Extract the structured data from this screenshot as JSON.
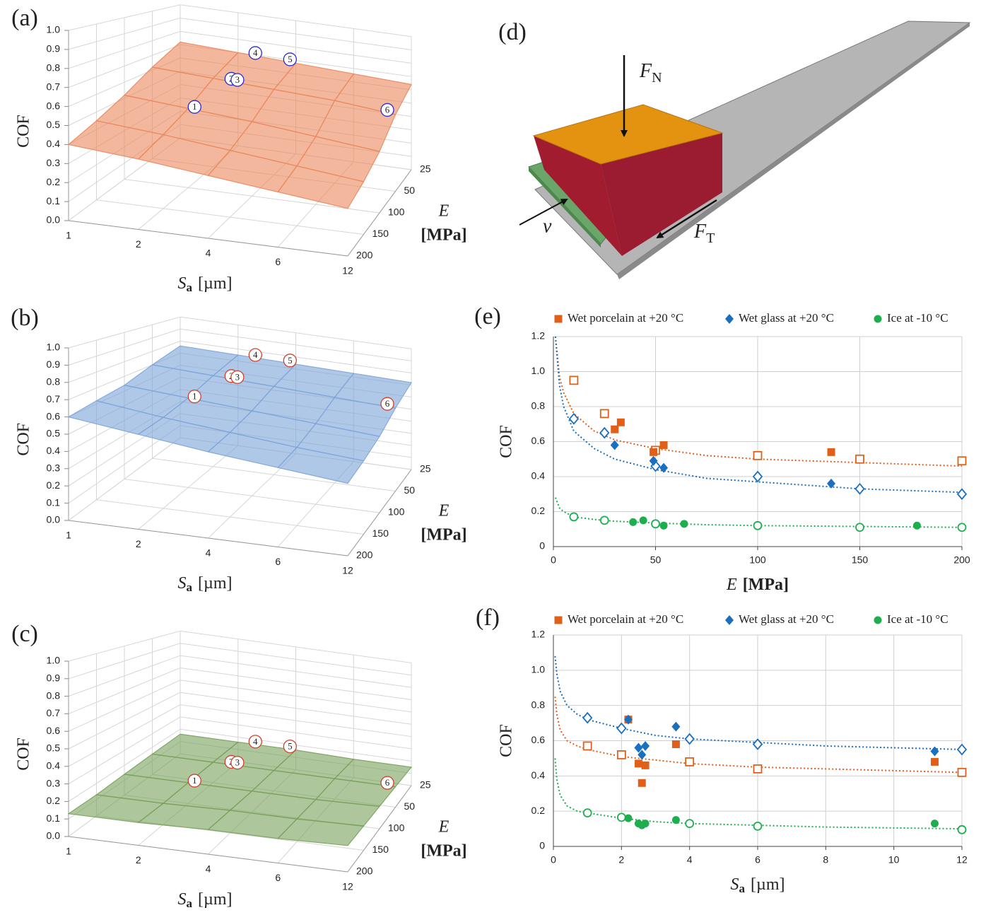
{
  "chart_data": [
    {
      "type": "surface3d",
      "panel_label": "(a)",
      "zlabel": "COF",
      "xlabel": [
        "S",
        "a",
        "[µm]"
      ],
      "ylabel": [
        "E",
        "[MPa]"
      ],
      "x_categories": [
        1,
        2,
        4,
        6,
        12
      ],
      "y_categories": [
        25,
        50,
        100,
        150,
        200
      ],
      "zlim": [
        0,
        1
      ],
      "zticks": [
        {
          "value": 0,
          "label": "0.0"
        },
        0.1,
        0.2,
        0.3,
        0.4,
        0.5,
        0.6,
        0.7,
        0.8,
        0.9,
        {
          "value": 1,
          "label": "1.0"
        }
      ],
      "grid": true,
      "z": [
        [
          0.72,
          0.7,
          0.68,
          0.66,
          0.64
        ],
        [
          0.62,
          0.6,
          0.58,
          0.56,
          0.52
        ],
        [
          0.52,
          0.49,
          0.46,
          0.42,
          0.38
        ],
        [
          0.45,
          0.42,
          0.38,
          0.34,
          0.3
        ],
        [
          0.4,
          0.37,
          0.33,
          0.29,
          0.25
        ]
      ],
      "color": "#f08a5d",
      "annotation_color": "#2a2ad0",
      "annotations": [
        {
          "label": "1",
          "x": 2.2,
          "y": 100
        },
        {
          "label": "2",
          "x": 2.6,
          "y": 50
        },
        {
          "label": "3",
          "x": 2.8,
          "y": 50
        },
        {
          "label": "4",
          "x": 2.6,
          "y": 25
        },
        {
          "label": "5",
          "x": 3.8,
          "y": 25
        },
        {
          "label": "6",
          "x": 11.2,
          "y": 50
        }
      ]
    },
    {
      "type": "surface3d",
      "panel_label": "(b)",
      "zlabel": "COF",
      "xlabel": [
        "S",
        "a",
        "[µm]"
      ],
      "ylabel": [
        "E",
        "[MPa]"
      ],
      "x_categories": [
        1,
        2,
        4,
        6,
        12
      ],
      "y_categories": [
        25,
        50,
        100,
        150,
        200
      ],
      "zlim": [
        0,
        1
      ],
      "zticks": [
        {
          "value": 0,
          "label": "0.0"
        },
        0.1,
        0.2,
        0.3,
        0.4,
        0.5,
        0.6,
        0.7,
        0.8,
        0.9,
        {
          "value": 1,
          "label": "1.0"
        }
      ],
      "grid": true,
      "z": [
        [
          0.76,
          0.75,
          0.74,
          0.73,
          0.72
        ],
        [
          0.7,
          0.68,
          0.66,
          0.64,
          0.62
        ],
        [
          0.64,
          0.61,
          0.58,
          0.55,
          0.52
        ],
        [
          0.62,
          0.57,
          0.53,
          0.49,
          0.46
        ],
        [
          0.6,
          0.55,
          0.5,
          0.46,
          0.42
        ]
      ],
      "color": "#7fa7dc",
      "annotation_color": "#d0402a",
      "annotations": [
        {
          "label": "1",
          "x": 2.2,
          "y": 100
        },
        {
          "label": "2",
          "x": 2.6,
          "y": 50
        },
        {
          "label": "3",
          "x": 2.8,
          "y": 50
        },
        {
          "label": "4",
          "x": 2.6,
          "y": 25
        },
        {
          "label": "5",
          "x": 3.8,
          "y": 25
        },
        {
          "label": "6",
          "x": 11.2,
          "y": 50
        }
      ]
    },
    {
      "type": "surface3d",
      "panel_label": "(c)",
      "zlabel": "COF",
      "xlabel": [
        "S",
        "a",
        "[µm]"
      ],
      "ylabel": [
        "E",
        "[MPa]"
      ],
      "x_categories": [
        1,
        2,
        4,
        6,
        12
      ],
      "y_categories": [
        25,
        50,
        100,
        150,
        200
      ],
      "zlim": [
        0,
        1
      ],
      "zticks": [
        {
          "value": 0,
          "label": "0.0"
        },
        0.1,
        0.2,
        0.3,
        0.4,
        0.5,
        0.6,
        0.7,
        0.8,
        0.9,
        {
          "value": 1,
          "label": "1.0"
        }
      ],
      "grid": true,
      "z": [
        [
          0.16,
          0.16,
          0.16,
          0.15,
          0.15
        ],
        [
          0.15,
          0.15,
          0.15,
          0.15,
          0.15
        ],
        [
          0.14,
          0.14,
          0.14,
          0.14,
          0.15
        ],
        [
          0.13,
          0.13,
          0.14,
          0.14,
          0.15
        ],
        [
          0.13,
          0.13,
          0.14,
          0.14,
          0.15
        ]
      ],
      "color": "#7aa35c",
      "annotation_color": "#d0402a",
      "annotations": [
        {
          "label": "1",
          "x": 2.2,
          "y": 100
        },
        {
          "label": "2",
          "x": 2.6,
          "y": 50
        },
        {
          "label": "3",
          "x": 2.8,
          "y": 50
        },
        {
          "label": "4",
          "x": 2.6,
          "y": 25
        },
        {
          "label": "5",
          "x": 3.8,
          "y": 25
        },
        {
          "label": "6",
          "x": 11.2,
          "y": 50
        }
      ]
    },
    {
      "type": "scatter",
      "panel_label": "(e)",
      "ylabel": "COF",
      "xlabel": [
        "E",
        "[MPa]"
      ],
      "xlim": [
        0,
        200
      ],
      "xticks": [
        0,
        50,
        100,
        150,
        200
      ],
      "ylim": [
        0,
        1.2
      ],
      "yticks": [
        0,
        0.2,
        0.4,
        0.6,
        0.8,
        {
          "value": 1,
          "label": "1.0"
        },
        1.2
      ],
      "grid": true,
      "series": [
        {
          "name": "Wet porcelain at +20 °C",
          "color": "#e0601a",
          "marker": "square",
          "x": [
            30,
            33,
            49,
            54,
            136
          ],
          "values": [
            0.67,
            0.71,
            0.54,
            0.58,
            0.54
          ],
          "open_x": [
            10,
            25,
            50,
            100,
            150,
            200
          ],
          "open_values": [
            0.95,
            0.76,
            0.55,
            0.52,
            0.5,
            0.49
          ],
          "trend_x": [
            1,
            3,
            5,
            10,
            20,
            30,
            50,
            75,
            100,
            150,
            200
          ],
          "trend_values": [
            1.2,
            0.97,
            0.88,
            0.76,
            0.66,
            0.61,
            0.56,
            0.52,
            0.5,
            0.48,
            0.46
          ]
        },
        {
          "name": "Wet glass at +20 °C",
          "color": "#1a6fc0",
          "marker": "diamond",
          "x": [
            30,
            49,
            54,
            136
          ],
          "values": [
            0.58,
            0.49,
            0.45,
            0.36
          ],
          "open_x": [
            10,
            25,
            50,
            100,
            150,
            200
          ],
          "open_values": [
            0.73,
            0.65,
            0.46,
            0.4,
            0.33,
            0.3
          ],
          "trend_x": [
            1,
            3,
            5,
            10,
            20,
            30,
            50,
            75,
            100,
            150,
            200
          ],
          "trend_values": [
            1.2,
            0.92,
            0.8,
            0.66,
            0.56,
            0.5,
            0.44,
            0.39,
            0.37,
            0.33,
            0.31
          ]
        },
        {
          "name": "Ice at -10 °C",
          "color": "#1fae4f",
          "marker": "circle",
          "x": [
            39,
            44,
            54,
            64,
            178
          ],
          "values": [
            0.14,
            0.15,
            0.12,
            0.13,
            0.12
          ],
          "open_x": [
            10,
            25,
            50,
            100,
            150,
            200
          ],
          "open_values": [
            0.17,
            0.15,
            0.13,
            0.12,
            0.11,
            0.11
          ],
          "trend_x": [
            1,
            3,
            5,
            10,
            20,
            30,
            50,
            75,
            100,
            150,
            200
          ],
          "trend_values": [
            0.28,
            0.22,
            0.2,
            0.17,
            0.155,
            0.145,
            0.135,
            0.125,
            0.12,
            0.115,
            0.11
          ]
        }
      ]
    },
    {
      "type": "scatter",
      "panel_label": "(f)",
      "ylabel": "COF",
      "xlabel": [
        "S",
        "a",
        "[µm]"
      ],
      "xlim": [
        0,
        12
      ],
      "xticks": [
        0,
        2,
        4,
        6,
        8,
        10,
        12
      ],
      "ylim": [
        0,
        1.2
      ],
      "yticks": [
        0,
        0.2,
        0.4,
        0.6,
        0.8,
        {
          "value": 1,
          "label": "1.0"
        },
        1.2
      ],
      "grid": true,
      "series": [
        {
          "name": "Wet porcelain at +20 °C",
          "color": "#e0601a",
          "marker": "square",
          "x": [
            2.2,
            2.5,
            2.6,
            2.7,
            3.6,
            11.2
          ],
          "values": [
            0.72,
            0.47,
            0.36,
            0.46,
            0.58,
            0.48
          ],
          "open_x": [
            1,
            2,
            4,
            6,
            12
          ],
          "open_values": [
            0.57,
            0.52,
            0.48,
            0.44,
            0.42
          ],
          "trend_x": [
            0.05,
            0.1,
            0.2,
            0.4,
            0.7,
            1,
            2,
            3,
            4,
            6,
            8,
            12
          ],
          "trend_values": [
            0.85,
            0.75,
            0.66,
            0.6,
            0.57,
            0.55,
            0.51,
            0.49,
            0.47,
            0.45,
            0.44,
            0.42
          ]
        },
        {
          "name": "Wet glass at +20 °C",
          "color": "#1a6fc0",
          "marker": "diamond",
          "x": [
            2.2,
            2.5,
            2.6,
            2.7,
            3.6,
            11.2
          ],
          "values": [
            0.72,
            0.56,
            0.52,
            0.57,
            0.68,
            0.54
          ],
          "open_x": [
            1,
            2,
            4,
            6,
            12
          ],
          "open_values": [
            0.73,
            0.67,
            0.61,
            0.58,
            0.55
          ],
          "trend_x": [
            0.05,
            0.1,
            0.2,
            0.4,
            0.7,
            1,
            2,
            3,
            4,
            6,
            8,
            12
          ],
          "trend_values": [
            1.08,
            0.98,
            0.88,
            0.8,
            0.75,
            0.72,
            0.67,
            0.63,
            0.61,
            0.59,
            0.57,
            0.55
          ]
        },
        {
          "name": "Ice at -10 °C",
          "color": "#1fae4f",
          "marker": "circle",
          "x": [
            2.2,
            2.5,
            2.6,
            2.7,
            3.6,
            11.2
          ],
          "values": [
            0.16,
            0.13,
            0.12,
            0.13,
            0.15,
            0.13
          ],
          "open_x": [
            1,
            2,
            4,
            6,
            12
          ],
          "open_values": [
            0.19,
            0.165,
            0.13,
            0.115,
            0.095
          ],
          "trend_x": [
            0.05,
            0.1,
            0.2,
            0.4,
            0.7,
            1,
            2,
            3,
            4,
            6,
            8,
            12
          ],
          "trend_values": [
            0.5,
            0.38,
            0.29,
            0.23,
            0.2,
            0.19,
            0.16,
            0.14,
            0.13,
            0.12,
            0.11,
            0.1
          ]
        }
      ]
    }
  ],
  "diagram": {
    "label": "(d)",
    "normal_force": {
      "symbol": "F",
      "sub": "N"
    },
    "tangential_force": {
      "symbol": "F",
      "sub": "T"
    },
    "velocity": "v"
  }
}
